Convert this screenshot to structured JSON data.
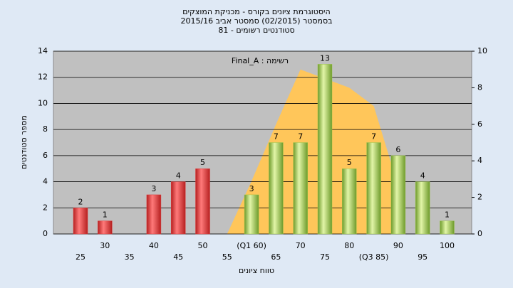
{
  "chart_data": {
    "type": "bar",
    "title": [
      "היסטוגרמת ציונים בקורס - מכניקת המוצקים",
      "בסמסטר  (02/2015)  סמסטר אביב  2015/16",
      "סטודנטים רשומים - 81"
    ],
    "annotation": "רשימה : Final_A",
    "y_label": "מספר סטודנטים",
    "x_label": "טווח ציונים",
    "categories": [
      "25",
      "30",
      "35",
      "40",
      "45",
      "50",
      "55",
      "(Q1 60)",
      "65",
      "70",
      "75",
      "80",
      "(Q3 85)",
      "90",
      "95",
      "100"
    ],
    "values": [
      2,
      1,
      null,
      3,
      4,
      5,
      null,
      3,
      7,
      7,
      13,
      5,
      7,
      6,
      4,
      1
    ],
    "colors": [
      "#e03a3a",
      "#e03a3a",
      "#e03a3a",
      "#e03a3a",
      "#e03a3a",
      "#e03a3a",
      "#e03a3a",
      "#9cc44c",
      "#9cc44c",
      "#9cc44c",
      "#9cc44c",
      "#9cc44c",
      "#9cc44c",
      "#9cc44c",
      "#9cc44c",
      "#9cc44c"
    ],
    "curve": {
      "axis": "y2",
      "color": "#ffc65a",
      "values": [
        null,
        null,
        null,
        null,
        null,
        null,
        0,
        2.9,
        6,
        9,
        8.5,
        8,
        7,
        2.6,
        null,
        null
      ]
    },
    "ylim": [
      0,
      14
    ],
    "yticks": [
      0,
      2,
      4,
      6,
      8,
      10,
      12,
      14
    ],
    "y2lim": [
      0,
      10
    ],
    "y2ticks": [
      0,
      2,
      4,
      6,
      8,
      10
    ],
    "grid": true
  }
}
